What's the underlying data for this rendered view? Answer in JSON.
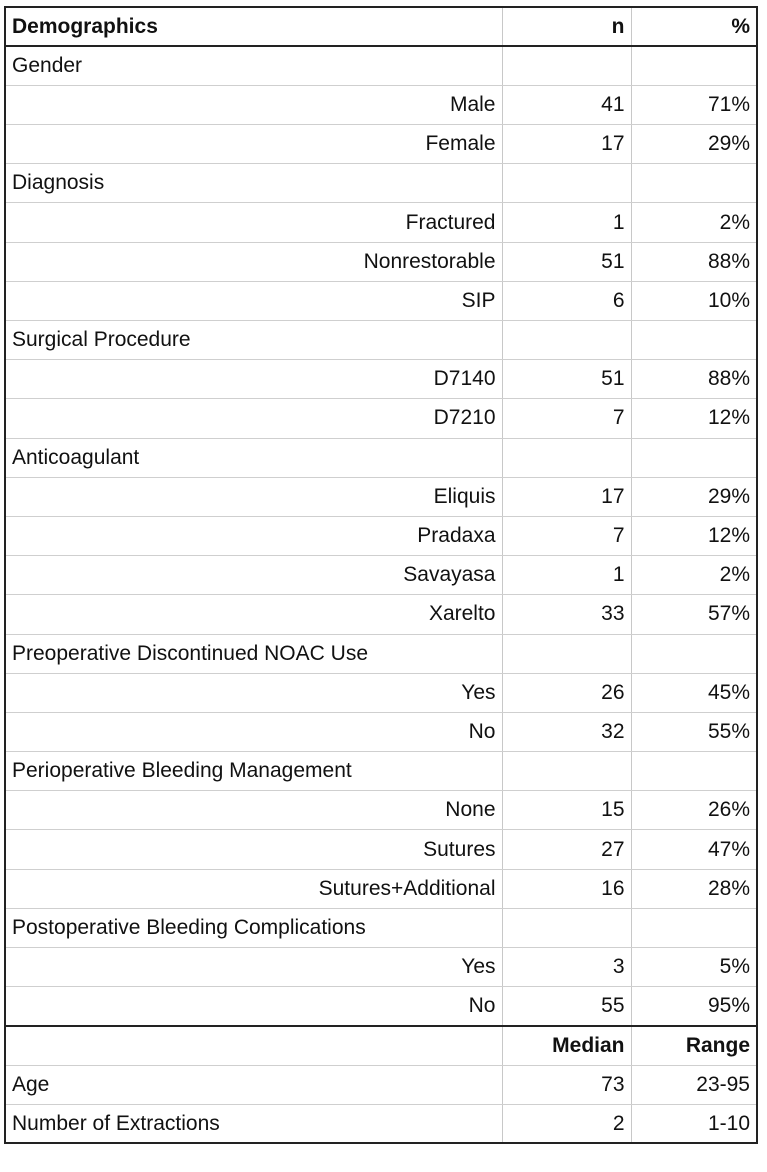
{
  "header": {
    "title": "Demographics",
    "n": "n",
    "pct": "%"
  },
  "groups": [
    {
      "label": "Gender",
      "rows": [
        {
          "label": "Male",
          "n": "41",
          "pct": "71%"
        },
        {
          "label": "Female",
          "n": "17",
          "pct": "29%"
        }
      ]
    },
    {
      "label": "Diagnosis",
      "rows": [
        {
          "label": "Fractured",
          "n": "1",
          "pct": "2%"
        },
        {
          "label": "Nonrestorable",
          "n": "51",
          "pct": "88%"
        },
        {
          "label": "SIP",
          "n": "6",
          "pct": "10%"
        }
      ]
    },
    {
      "label": "Surgical Procedure",
      "rows": [
        {
          "label": "D7140",
          "n": "51",
          "pct": "88%"
        },
        {
          "label": "D7210",
          "n": "7",
          "pct": "12%"
        }
      ]
    },
    {
      "label": "Anticoagulant",
      "rows": [
        {
          "label": "Eliquis",
          "n": "17",
          "pct": "29%"
        },
        {
          "label": "Pradaxa",
          "n": "7",
          "pct": "12%"
        },
        {
          "label": "Savayasa",
          "n": "1",
          "pct": "2%"
        },
        {
          "label": "Xarelto",
          "n": "33",
          "pct": "57%"
        }
      ]
    },
    {
      "label": "Preoperative Discontinued NOAC Use",
      "rows": [
        {
          "label": "Yes",
          "n": "26",
          "pct": "45%"
        },
        {
          "label": "No",
          "n": "32",
          "pct": "55%"
        }
      ]
    },
    {
      "label": "Perioperative Bleeding Management",
      "rows": [
        {
          "label": "None",
          "n": "15",
          "pct": "26%"
        },
        {
          "label": "Sutures",
          "n": "27",
          "pct": "47%"
        },
        {
          "label": "Sutures+Additional",
          "n": "16",
          "pct": "28%"
        }
      ]
    },
    {
      "label": "Postoperative Bleeding Complications",
      "rows": [
        {
          "label": "Yes",
          "n": "3",
          "pct": "5%"
        },
        {
          "label": "No",
          "n": "55",
          "pct": "95%"
        }
      ]
    }
  ],
  "stats_header": {
    "median": "Median",
    "range": "Range"
  },
  "stats": [
    {
      "label": "Age",
      "median": "73",
      "range": "23-95"
    },
    {
      "label": "Number of Extractions",
      "median": "2",
      "range": "1-10"
    }
  ]
}
